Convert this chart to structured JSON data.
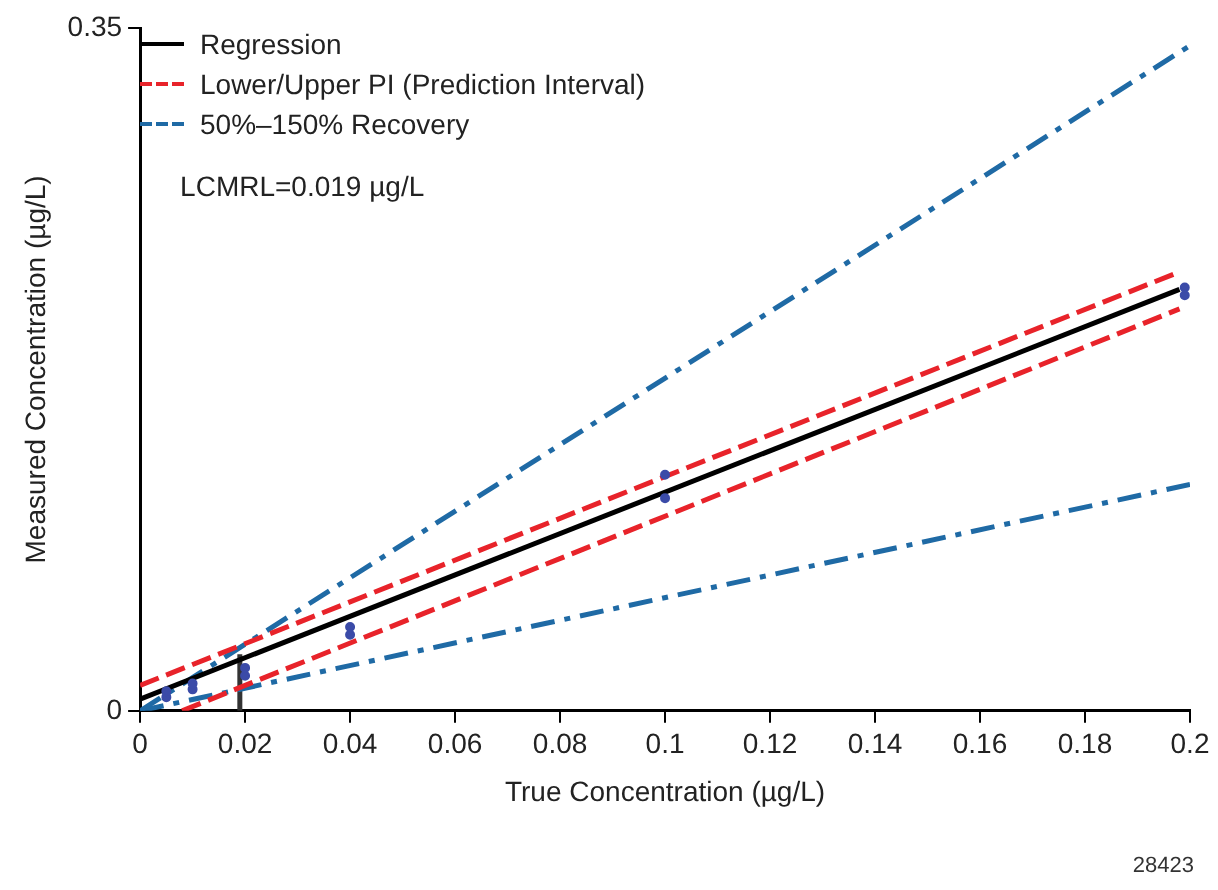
{
  "chart_data": {
    "type": "scatter",
    "xlabel": "True Concentration (µg/L)",
    "ylabel": "Measured Concentration (µg/L)",
    "xlim": [
      0,
      0.2
    ],
    "xticks": [
      0,
      0.02,
      0.04,
      0.06,
      0.08,
      0.1,
      0.12,
      0.14,
      0.16,
      0.18,
      0.2
    ],
    "ylim": [
      0,
      0.35
    ],
    "yticks": [
      0,
      0.35
    ],
    "grid": false,
    "legend": "top left",
    "annotations": [
      "LCMRL=0.019 µg/L",
      "28423"
    ],
    "series": [
      {
        "name": "Regression",
        "type": "line",
        "color": "#000000",
        "line_style": "solid",
        "x": [
          0,
          0.198
        ],
        "values": [
          0.006,
          0.216
        ]
      },
      {
        "name": "Lower/Upper PI (Prediction Interval)",
        "type": "line",
        "color": "#e8232a",
        "line_style": "dashed",
        "x": [
          0,
          0.198
        ],
        "values": [
          0.013,
          0.225
        ]
      },
      {
        "type": "line",
        "color": "#e8232a",
        "line_style": "dashed",
        "x": [
          0.008,
          0.198
        ],
        "values": [
          0,
          0.206
        ]
      },
      {
        "name": "50%–150% Recovery",
        "type": "line",
        "color": "#1f6aa5",
        "line_style": "dashdot",
        "x": [
          0,
          0.2
        ],
        "values": [
          0,
          0.341
        ]
      },
      {
        "type": "line",
        "color": "#1f6aa5",
        "line_style": "dashdot",
        "x": [
          0,
          0.2
        ],
        "values": [
          0,
          0.116
        ]
      },
      {
        "type": "line",
        "color": "#333333",
        "line_style": "solid",
        "x": [
          0.019,
          0.019
        ],
        "values": [
          0,
          0.029
        ]
      },
      {
        "color": "#3b4ba8",
        "marker": "circle",
        "x": [
          0.005,
          0.005,
          0.01,
          0.01,
          0.02,
          0.02,
          0.04,
          0.04,
          0.1,
          0.1,
          0.199,
          0.199
        ],
        "values": [
          0.007,
          0.01,
          0.011,
          0.014,
          0.018,
          0.022,
          0.039,
          0.043,
          0.109,
          0.121,
          0.213,
          0.217
        ]
      }
    ]
  }
}
